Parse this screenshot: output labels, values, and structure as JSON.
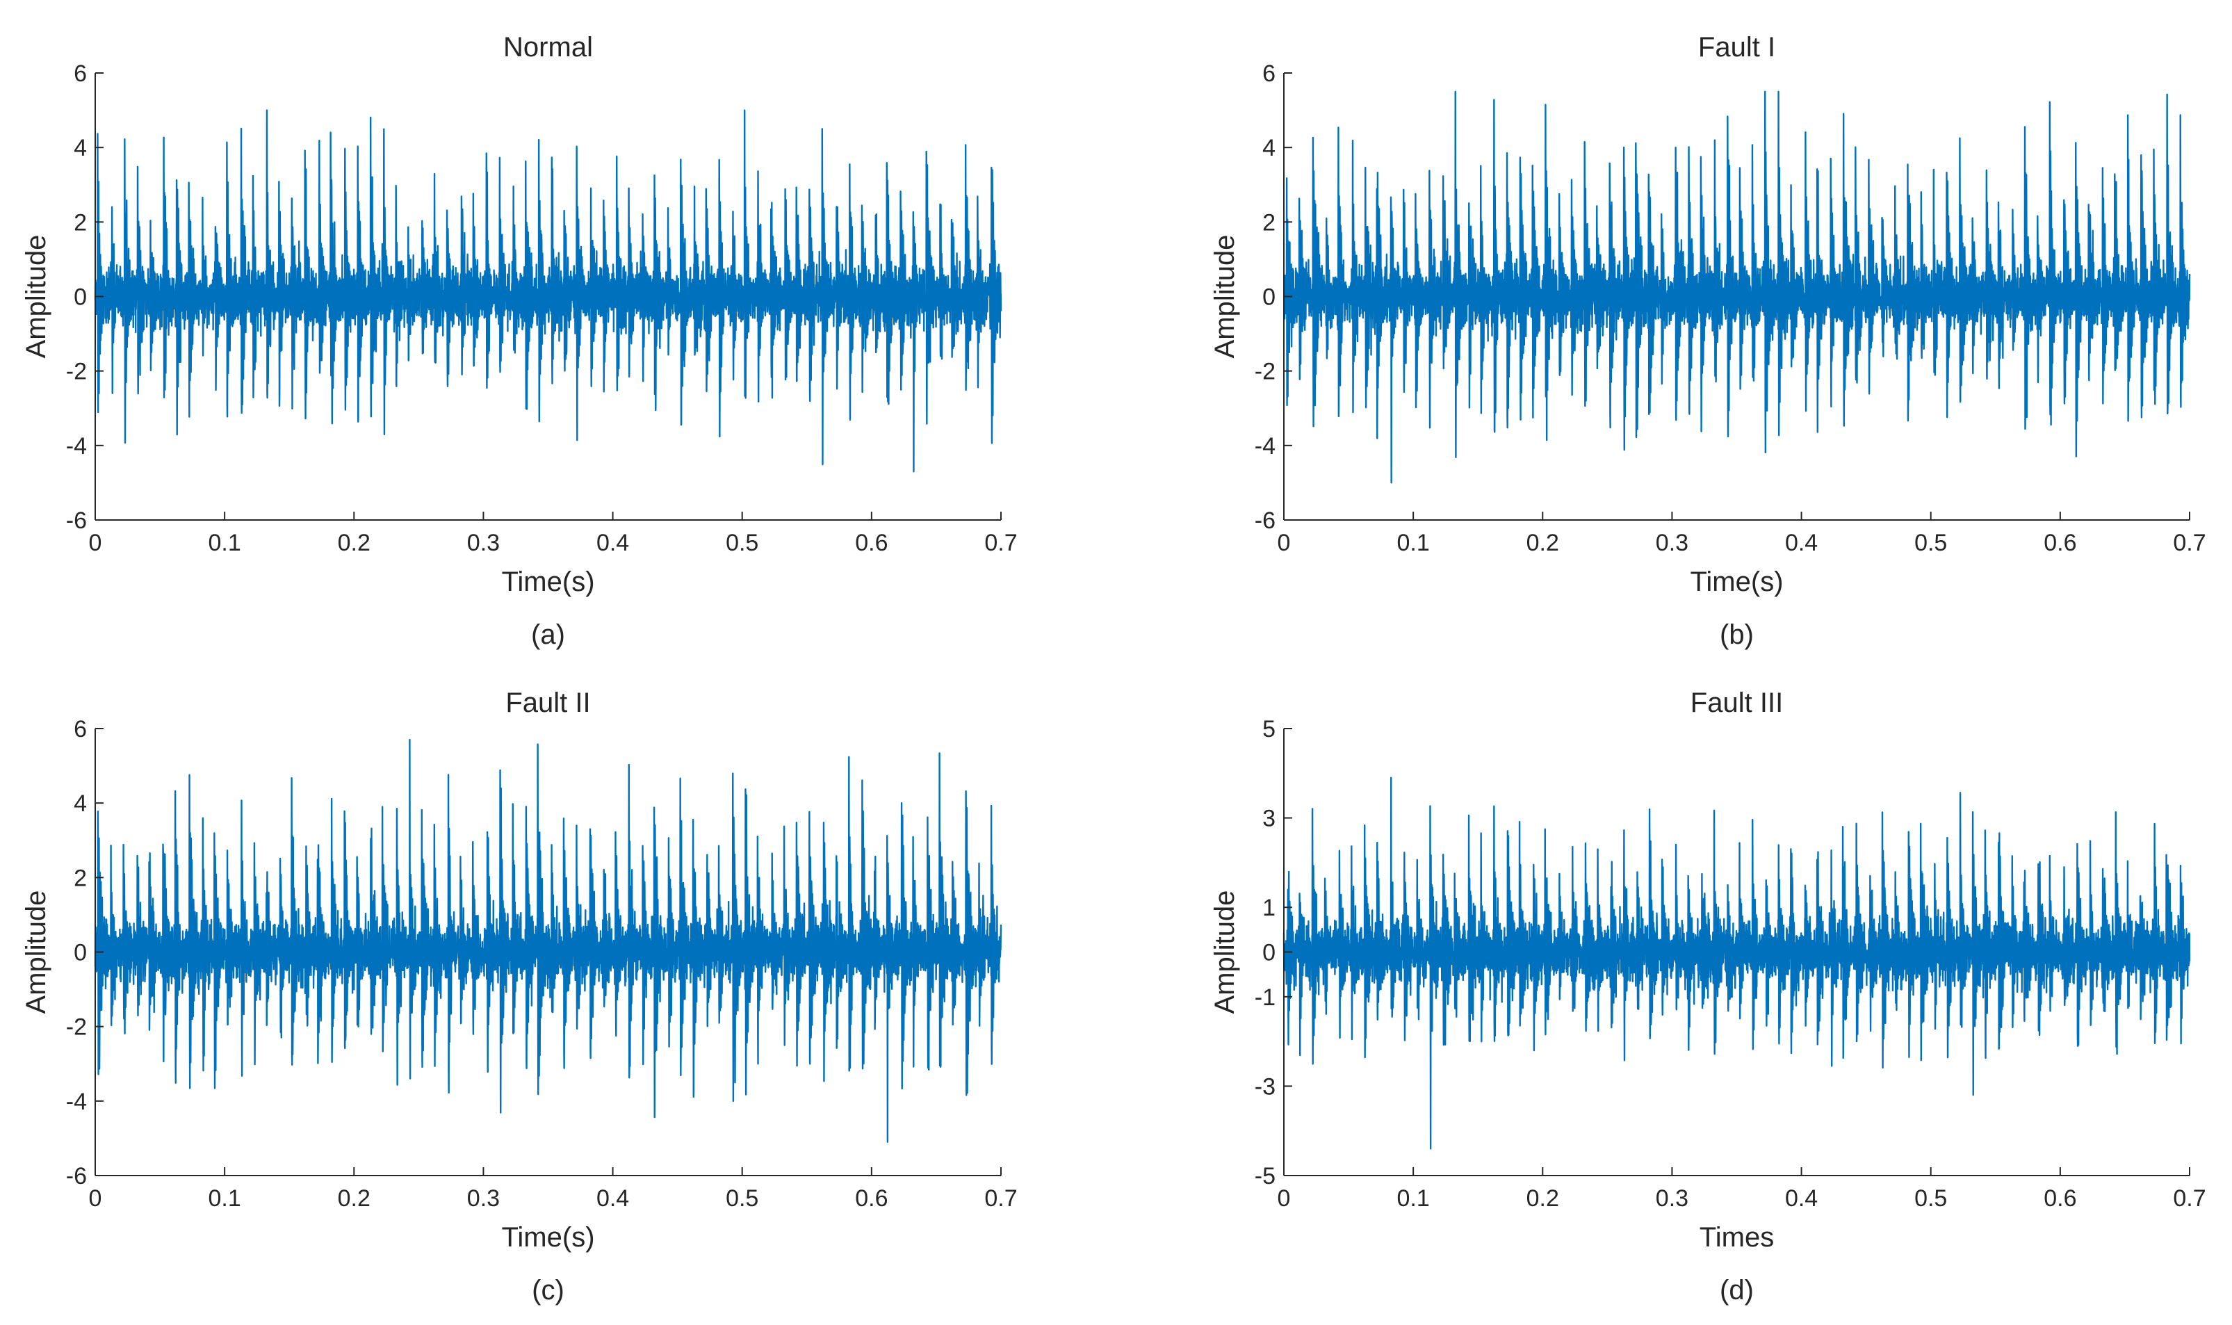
{
  "chart_data": [
    {
      "type": "line",
      "panel": "(a)",
      "title": "Normal",
      "xlabel": "Time(s)",
      "ylabel": "Amplitude",
      "xlim": [
        0,
        0.7
      ],
      "ylim": [
        -6,
        6
      ],
      "xticks": [
        0,
        0.1,
        0.2,
        0.3,
        0.4,
        0.5,
        0.6,
        0.7
      ],
      "xtick_labels": [
        "0",
        "0.1",
        "0.2",
        "0.3",
        "0.4",
        "0.5",
        "0.6",
        "0.7"
      ],
      "yticks": [
        -6,
        -4,
        -2,
        0,
        2,
        4,
        6
      ],
      "ytick_labels": [
        "-6",
        "-4",
        "-2",
        "0",
        "2",
        "4",
        "6"
      ],
      "series": [
        {
          "name": "Normal signal",
          "color": "#0072bd",
          "signal": {
            "impulses": 70,
            "peak_max": 5.0,
            "peak_min": -4.7,
            "typical_peak": 3.6,
            "noise_rms": 0.35,
            "seed": 11
          }
        }
      ]
    },
    {
      "type": "line",
      "panel": "(b)",
      "title": "Fault I",
      "xlabel": "Time(s)",
      "ylabel": "Amplitude",
      "xlim": [
        0,
        0.7
      ],
      "ylim": [
        -6,
        6
      ],
      "xticks": [
        0,
        0.1,
        0.2,
        0.3,
        0.4,
        0.5,
        0.6,
        0.7
      ],
      "xtick_labels": [
        "0",
        "0.1",
        "0.2",
        "0.3",
        "0.4",
        "0.5",
        "0.6",
        "0.7"
      ],
      "yticks": [
        -6,
        -4,
        -2,
        0,
        2,
        4,
        6
      ],
      "ytick_labels": [
        "-6",
        "-4",
        "-2",
        "0",
        "2",
        "4",
        "6"
      ],
      "series": [
        {
          "name": "Fault I signal",
          "color": "#0072bd",
          "signal": {
            "impulses": 70,
            "peak_max": 5.5,
            "peak_min": -5.0,
            "typical_peak": 4.2,
            "noise_rms": 0.35,
            "seed": 23
          }
        }
      ]
    },
    {
      "type": "line",
      "panel": "(c)",
      "title": "Fault II",
      "xlabel": "Time(s)",
      "ylabel": "Amplitude",
      "xlim": [
        0,
        0.7
      ],
      "ylim": [
        -6,
        6
      ],
      "xticks": [
        0,
        0.1,
        0.2,
        0.3,
        0.4,
        0.5,
        0.6,
        0.7
      ],
      "xtick_labels": [
        "0",
        "0.1",
        "0.2",
        "0.3",
        "0.4",
        "0.5",
        "0.6",
        "0.7"
      ],
      "yticks": [
        -6,
        -4,
        -2,
        0,
        2,
        4,
        6
      ],
      "ytick_labels": [
        "-6",
        "-4",
        "-2",
        "0",
        "2",
        "4",
        "6"
      ],
      "series": [
        {
          "name": "Fault II signal",
          "color": "#0072bd",
          "signal": {
            "impulses": 70,
            "peak_max": 5.7,
            "peak_min": -5.1,
            "typical_peak": 4.0,
            "noise_rms": 0.35,
            "seed": 37
          }
        }
      ]
    },
    {
      "type": "line",
      "panel": "(d)",
      "title": "Fault III",
      "xlabel": "Times",
      "ylabel": "Amplitude",
      "xlim": [
        0,
        0.7
      ],
      "ylim": [
        -5,
        5
      ],
      "xticks": [
        0,
        0.1,
        0.2,
        0.3,
        0.4,
        0.5,
        0.6,
        0.7
      ],
      "xtick_labels": [
        "0",
        "0.1",
        "0.2",
        "0.3",
        "0.4",
        "0.5",
        "0.6",
        "0.7"
      ],
      "yticks": [
        -5,
        -3,
        -1,
        0,
        1,
        3,
        5
      ],
      "ytick_labels": [
        "-5",
        "-3",
        "-1",
        "0",
        "1",
        "3",
        "5"
      ],
      "series": [
        {
          "name": "Fault III signal",
          "color": "#0072bd",
          "signal": {
            "impulses": 70,
            "peak_max": 3.9,
            "peak_min": -4.4,
            "typical_peak": 2.7,
            "noise_rms": 0.3,
            "seed": 53
          }
        }
      ]
    }
  ]
}
